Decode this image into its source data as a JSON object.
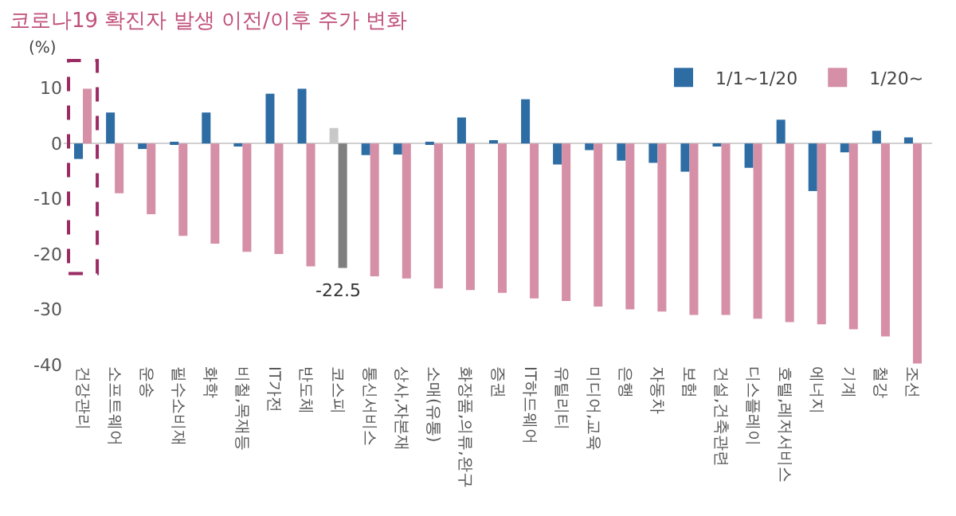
{
  "chart_data": {
    "type": "bar",
    "title": "코로나19 확진자 발생 이전/이후 주가 변화",
    "ylabel": "(%)",
    "categories": [
      "건강관리",
      "소프트웨어",
      "운송",
      "필수소비재",
      "화학",
      "비철,목재등",
      "IT가전",
      "반도체",
      "코스피",
      "통신서비스",
      "상사,자본재",
      "소매(유통)",
      "화장품,의류,완구",
      "증권",
      "IT하드웨어",
      "유틸리티",
      "미디어,교육",
      "은행",
      "자동차",
      "보험",
      "건설,건축관련",
      "디스플레이",
      "호텔,레저서비스",
      "에너지",
      "기계",
      "철강",
      "조선"
    ],
    "series": [
      {
        "name": "1/1~1/20",
        "colors": [
          "#2e6da4",
          "#2e6da4",
          "#2e6da4",
          "#2e6da4",
          "#2e6da4",
          "#2e6da4",
          "#2e6da4",
          "#2e6da4",
          "#c8c8c8",
          "#2e6da4",
          "#2e6da4",
          "#2e6da4",
          "#2e6da4",
          "#2e6da4",
          "#2e6da4",
          "#2e6da4",
          "#2e6da4",
          "#2e6da4",
          "#2e6da4",
          "#2e6da4",
          "#2e6da4",
          "#2e6da4",
          "#2e6da4",
          "#2e6da4",
          "#2e6da4",
          "#2e6da4",
          "#2e6da4"
        ],
        "values": [
          -2.8,
          5.6,
          -1.0,
          0.1,
          5.6,
          -0.5,
          9.0,
          9.9,
          2.8,
          -2.1,
          -2.0,
          0.2,
          4.7,
          0.6,
          8.0,
          -3.8,
          -1.2,
          -3.1,
          -3.5,
          -5.1,
          -0.5,
          -4.4,
          4.3,
          -8.6,
          -1.6,
          2.3,
          1.1
        ]
      },
      {
        "name": "1/20~",
        "colors": [
          "#d58fa6",
          "#d58fa6",
          "#d58fa6",
          "#d58fa6",
          "#d58fa6",
          "#d58fa6",
          "#d58fa6",
          "#d58fa6",
          "#7f7f7f",
          "#d58fa6",
          "#d58fa6",
          "#d58fa6",
          "#d58fa6",
          "#d58fa6",
          "#d58fa6",
          "#d58fa6",
          "#d58fa6",
          "#d58fa6",
          "#d58fa6",
          "#d58fa6",
          "#d58fa6",
          "#d58fa6",
          "#d58fa6",
          "#d58fa6",
          "#d58fa6",
          "#d58fa6",
          "#d58fa6"
        ],
        "values": [
          9.9,
          -9.0,
          -12.8,
          -16.7,
          -18.1,
          -19.6,
          -20.0,
          -22.2,
          -22.5,
          -24.0,
          -24.4,
          -26.2,
          -26.5,
          -27.0,
          -28.0,
          -28.5,
          -29.5,
          -30.0,
          -30.4,
          -31.0,
          -31.0,
          -31.7,
          -32.3,
          -32.7,
          -33.6,
          -34.9,
          -39.8
        ],
        "value_labels": [
          null,
          null,
          null,
          null,
          null,
          null,
          null,
          null,
          "-22.5",
          null,
          null,
          null,
          null,
          null,
          null,
          null,
          null,
          null,
          null,
          null,
          null,
          null,
          null,
          null,
          null,
          null,
          null
        ]
      }
    ],
    "ylim": [
      -40,
      15
    ],
    "yticks": [
      10,
      0,
      -10,
      -20,
      -30,
      -40
    ],
    "legend": "top right"
  }
}
